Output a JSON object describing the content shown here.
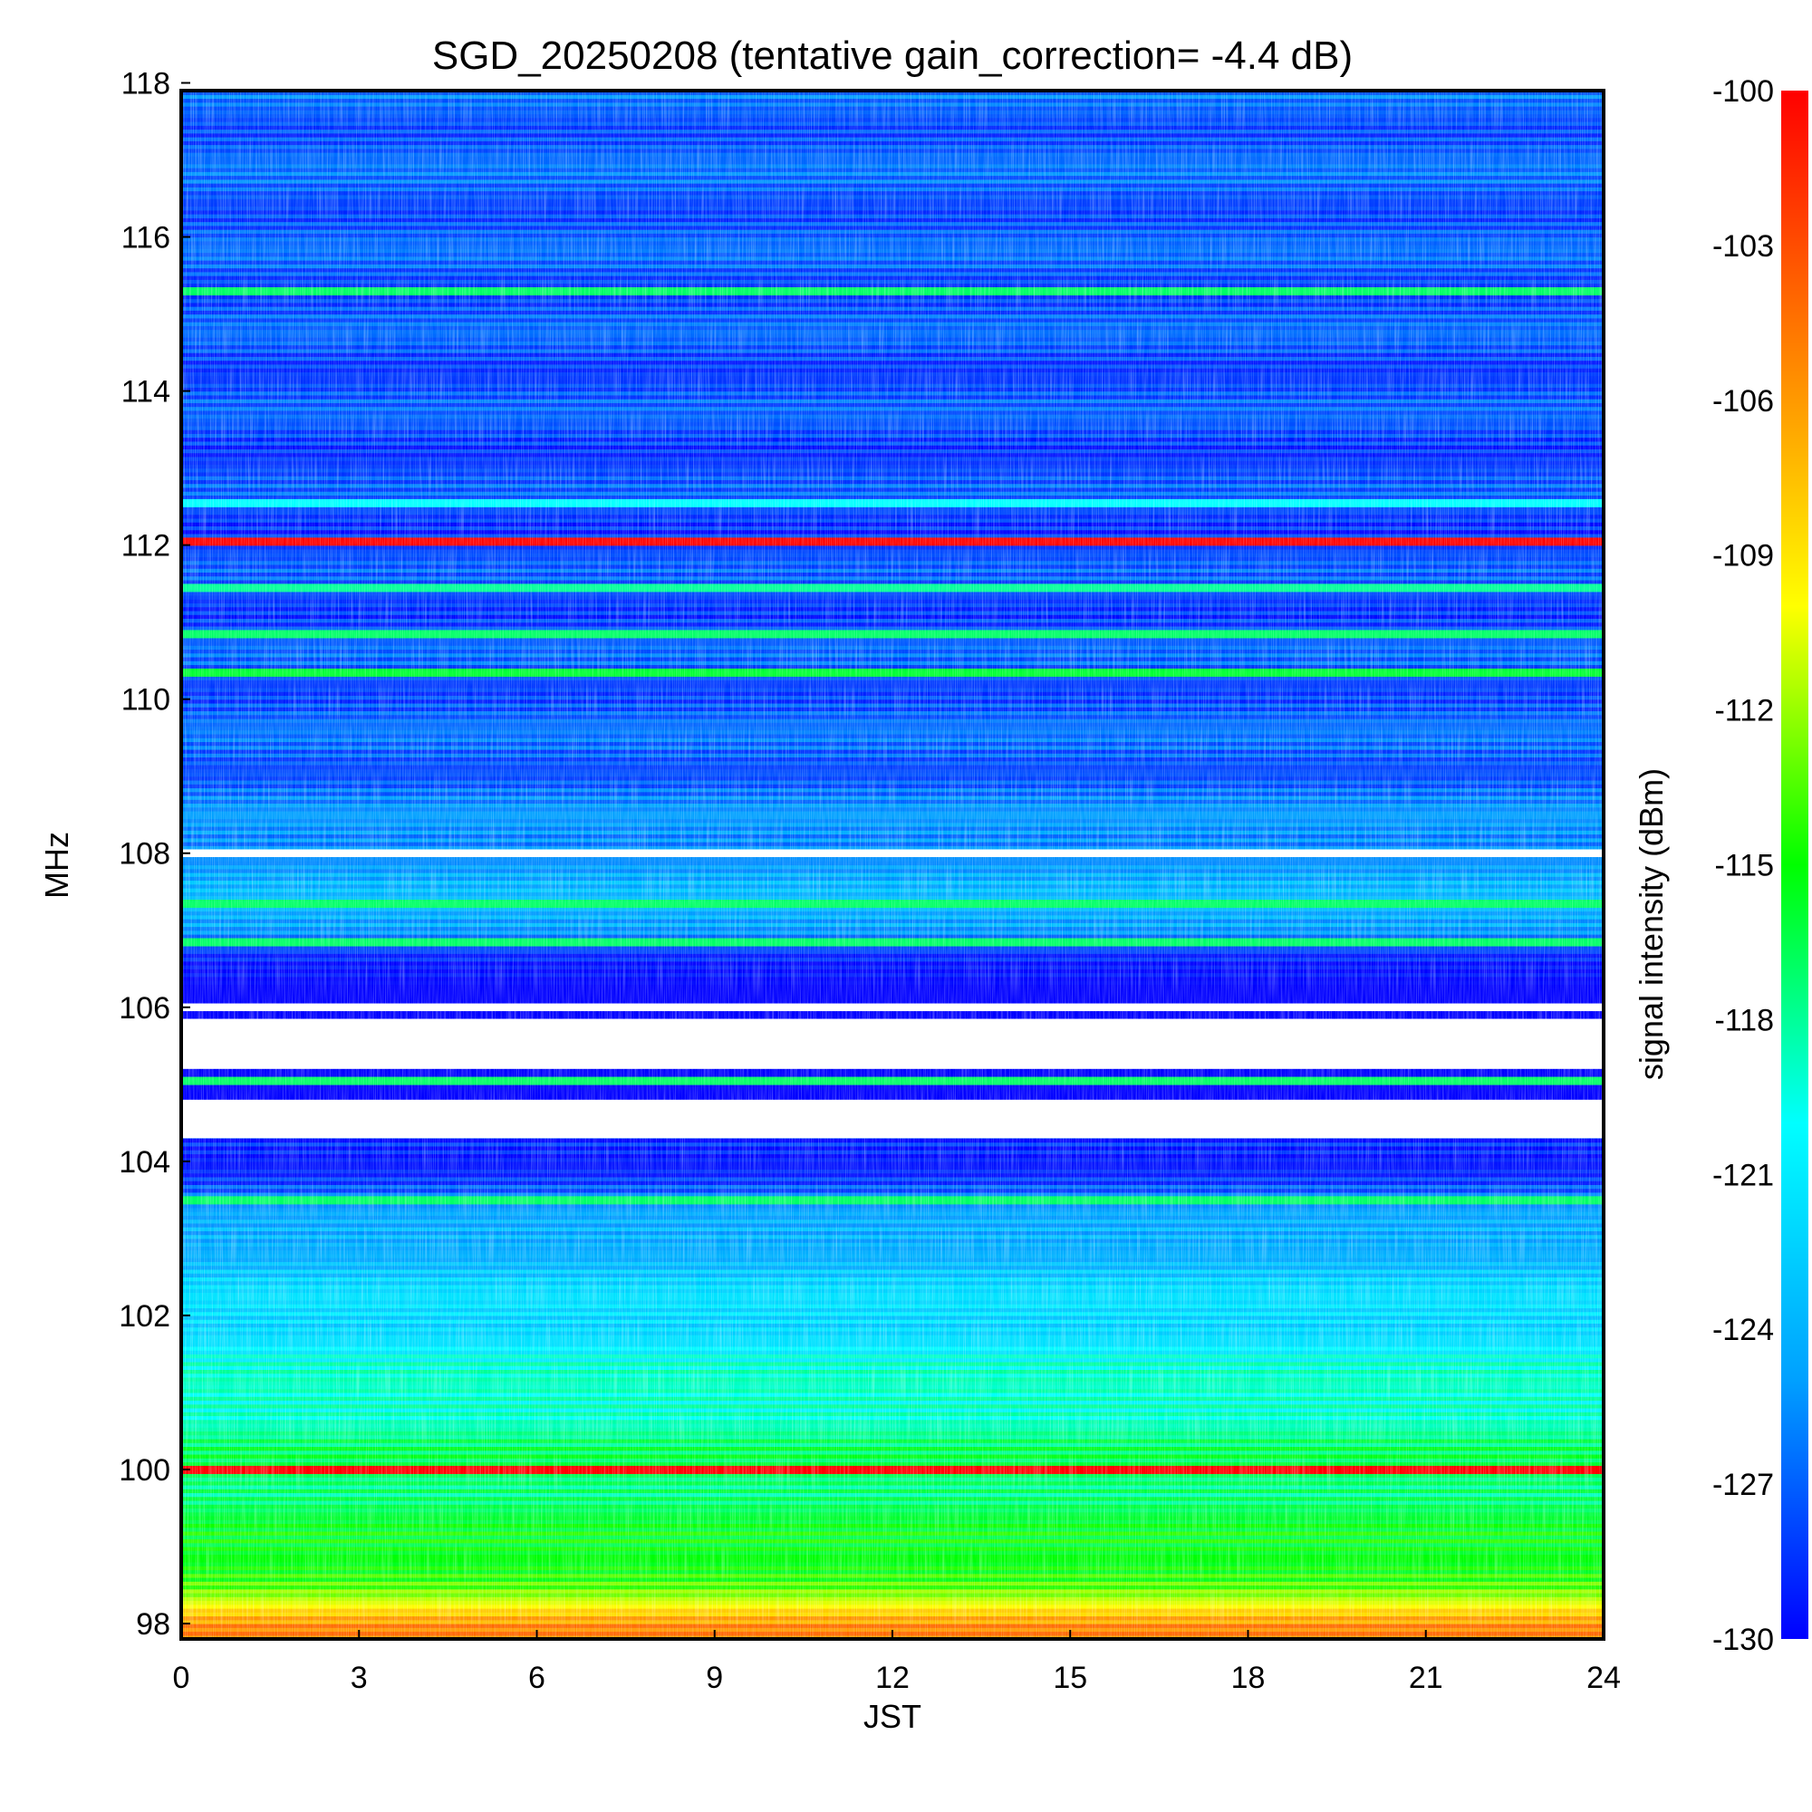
{
  "chart_data": {
    "type": "heatmap",
    "title": "SGD_20250208 (tentative gain_correction= -4.4 dB)",
    "xlabel": "JST",
    "ylabel": "MHz",
    "xlim": [
      0,
      24
    ],
    "ylim": [
      97.8,
      117.9
    ],
    "x_ticks": [
      0,
      3,
      6,
      9,
      12,
      15,
      18,
      21,
      24
    ],
    "y_ticks": [
      98,
      100,
      102,
      104,
      106,
      108,
      110,
      112,
      114,
      116,
      118
    ],
    "colorbar": {
      "label": "signal intensity (dBm)",
      "range": [
        -130,
        -100
      ],
      "ticks": [
        -100,
        -103,
        -106,
        -109,
        -112,
        -115,
        -118,
        -121,
        -124,
        -127,
        -130
      ],
      "colormap": [
        "#0000ff",
        "#00a0ff",
        "#00ffff",
        "#00ff00",
        "#ffff00",
        "#ff8000",
        "#ff0000"
      ]
    },
    "background_profile": [
      {
        "mhz": 97.9,
        "dbm": -105
      },
      {
        "mhz": 98.3,
        "dbm": -112
      },
      {
        "mhz": 99.0,
        "dbm": -116
      },
      {
        "mhz": 100.0,
        "dbm": -117
      },
      {
        "mhz": 101.0,
        "dbm": -119
      },
      {
        "mhz": 102.0,
        "dbm": -122
      },
      {
        "mhz": 103.0,
        "dbm": -124
      },
      {
        "mhz": 104.0,
        "dbm": -129
      },
      {
        "mhz": 104.8,
        "dbm": -131
      },
      {
        "mhz": 106.5,
        "dbm": -131
      },
      {
        "mhz": 107.0,
        "dbm": -124
      },
      {
        "mhz": 108.0,
        "dbm": -125
      },
      {
        "mhz": 109.0,
        "dbm": -127
      },
      {
        "mhz": 112.0,
        "dbm": -128
      },
      {
        "mhz": 118.0,
        "dbm": -127
      }
    ],
    "carriers": [
      {
        "mhz": 100.0,
        "dbm": -100
      },
      {
        "mhz": 103.5,
        "dbm": -117
      },
      {
        "mhz": 105.05,
        "dbm": -117
      },
      {
        "mhz": 106.85,
        "dbm": -117
      },
      {
        "mhz": 107.35,
        "dbm": -117
      },
      {
        "mhz": 110.35,
        "dbm": -116
      },
      {
        "mhz": 110.85,
        "dbm": -117
      },
      {
        "mhz": 111.45,
        "dbm": -118
      },
      {
        "mhz": 112.05,
        "dbm": -100
      },
      {
        "mhz": 112.55,
        "dbm": -120
      },
      {
        "mhz": 115.3,
        "dbm": -117
      }
    ],
    "no_data_bands_mhz": [
      [
        107.95,
        108.05
      ],
      [
        105.2,
        105.85
      ],
      [
        104.3,
        104.8
      ],
      [
        105.95,
        106.05
      ]
    ],
    "grid": false,
    "legend": "colorbar-right"
  }
}
